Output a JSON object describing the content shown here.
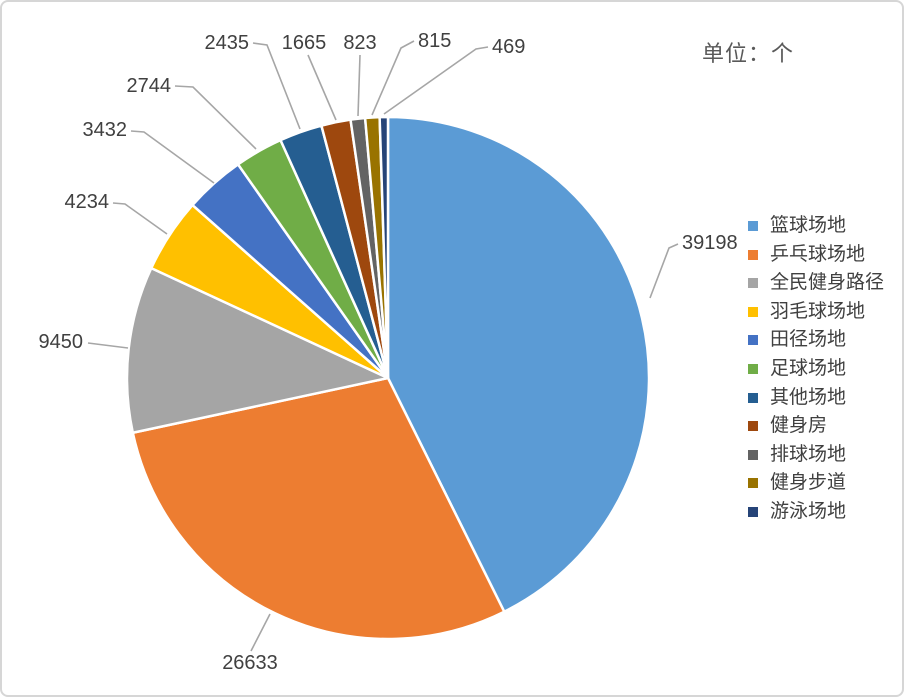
{
  "title": "单位：个",
  "chart_data": {
    "type": "pie",
    "title": "单位：个",
    "legend_position": "right",
    "grid": false,
    "start_angle_deg": 0,
    "direction": "clockwise",
    "categories": [
      "篮球场地",
      "乒乓球场地",
      "全民健身路径",
      "羽毛球场地",
      "田径场地",
      "足球场地",
      "其他场地",
      "健身房",
      "排球场地",
      "健身步道",
      "游泳场地"
    ],
    "values": [
      39198,
      26633,
      9450,
      4234,
      3432,
      2744,
      2435,
      1665,
      823,
      815,
      469
    ],
    "colors": [
      "#5B9BD5",
      "#ED7D31",
      "#A5A5A5",
      "#FFC000",
      "#4472C4",
      "#70AD47",
      "#255E91",
      "#9E480E",
      "#636363",
      "#997300",
      "#264478"
    ],
    "data_labels_shown": true,
    "leader_lines": true,
    "leader_line_color": "#A6A6A6",
    "text_color": "#404040",
    "title_color": "#595959"
  }
}
